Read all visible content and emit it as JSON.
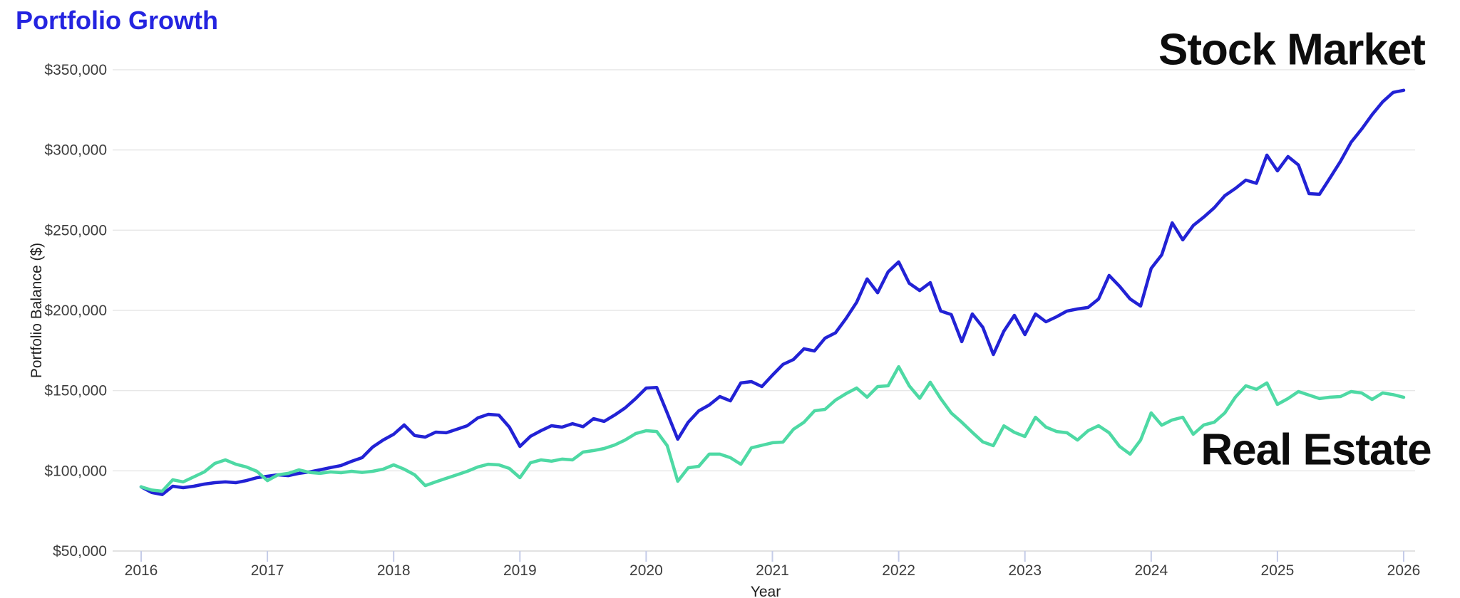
{
  "title": {
    "text": "Portfolio Growth",
    "color": "#2424e0"
  },
  "chart_data": {
    "type": "line",
    "title": "Portfolio Growth",
    "xlabel": "Year",
    "ylabel": "Portfolio Balance ($)",
    "xlim": [
      2016,
      2026
    ],
    "ylim": [
      50000,
      350000
    ],
    "grid": "horizontal-only",
    "legend_position": "inline-annotations",
    "points_per_year": 12,
    "x_start_year": 2016,
    "x_axis": {
      "title": "Year",
      "ticks": [
        "2016",
        "2017",
        "2018",
        "2019",
        "2020",
        "2021",
        "2022",
        "2023",
        "2024",
        "2025",
        "2026"
      ],
      "tick_color": "#c5cce8"
    },
    "y_axis": {
      "title": "Portfolio Balance ($)",
      "ticks": [
        {
          "value": 350000,
          "label": "$350,000"
        },
        {
          "value": 300000,
          "label": "$300,000"
        },
        {
          "value": 250000,
          "label": "$250,000"
        },
        {
          "value": 200000,
          "label": "$200,000"
        },
        {
          "value": 150000,
          "label": "$150,000"
        },
        {
          "value": 100000,
          "label": "$100,000"
        },
        {
          "value": 50000,
          "label": "$50,000"
        }
      ],
      "gridline_color": "#e7e7e7",
      "label_color": "#3d3d3d"
    },
    "series": [
      {
        "name": "Stock Market",
        "color": "#2222d5",
        "values": [
          90000,
          86500,
          85200,
          90400,
          89500,
          90400,
          91700,
          92600,
          93100,
          92600,
          93900,
          95700,
          96600,
          97500,
          97000,
          98400,
          99300,
          100600,
          102000,
          103300,
          105900,
          108200,
          114800,
          119200,
          122800,
          128600,
          122000,
          121000,
          124100,
          123700,
          125900,
          128100,
          133000,
          135200,
          134700,
          127200,
          115200,
          121500,
          125000,
          128100,
          127200,
          129400,
          127500,
          132500,
          130800,
          134700,
          139200,
          145000,
          151600,
          152000,
          136100,
          119700,
          130300,
          137400,
          141000,
          146300,
          143600,
          154800,
          155600,
          152500,
          159600,
          166300,
          169400,
          176100,
          174700,
          182700,
          186000,
          195000,
          205000,
          219600,
          211000,
          224000,
          230200,
          216900,
          212400,
          217300,
          199600,
          197400,
          180500,
          197800,
          189400,
          172500,
          187100,
          196900,
          184900,
          197800,
          192900,
          196000,
          199600,
          200900,
          201800,
          207100,
          221800,
          215000,
          207100,
          202700,
          226200,
          234600,
          254600,
          244000,
          252900,
          258200,
          264000,
          271500,
          276000,
          281200,
          279200,
          296800,
          287000,
          295900,
          290600,
          272800,
          272400,
          282600,
          293000,
          304800,
          313000,
          322000,
          330000,
          335900,
          337200
        ]
      },
      {
        "name": "Real Estate",
        "color": "#4ed9a4",
        "values": [
          90000,
          88000,
          87300,
          94400,
          93100,
          96200,
          99300,
          104600,
          106800,
          104100,
          102400,
          99700,
          93900,
          97500,
          98400,
          100600,
          99000,
          98400,
          99300,
          98800,
          99700,
          99000,
          99700,
          101000,
          103700,
          101000,
          97500,
          90800,
          93100,
          95300,
          97500,
          99700,
          102400,
          104100,
          103700,
          101500,
          95700,
          105000,
          106800,
          106000,
          107300,
          106800,
          111700,
          112600,
          113900,
          116100,
          119200,
          123200,
          125000,
          124500,
          115700,
          93500,
          101900,
          102800,
          110400,
          110400,
          108200,
          104100,
          114300,
          115900,
          117500,
          117900,
          125900,
          130300,
          137400,
          138300,
          144100,
          148100,
          151600,
          145900,
          152500,
          153000,
          164900,
          153000,
          145200,
          155200,
          145000,
          136000,
          130300,
          124000,
          118000,
          115700,
          128000,
          124000,
          121400,
          133400,
          127200,
          124500,
          123700,
          119200,
          125000,
          128100,
          123700,
          115200,
          110400,
          119200,
          136100,
          128400,
          131700,
          133400,
          122800,
          128600,
          130300,
          136100,
          145900,
          153000,
          150800,
          154800,
          141400,
          145000,
          149400,
          147200,
          145000,
          145900,
          146300,
          149400,
          148500,
          144500,
          148500,
          147500,
          145800
        ]
      }
    ]
  }
}
